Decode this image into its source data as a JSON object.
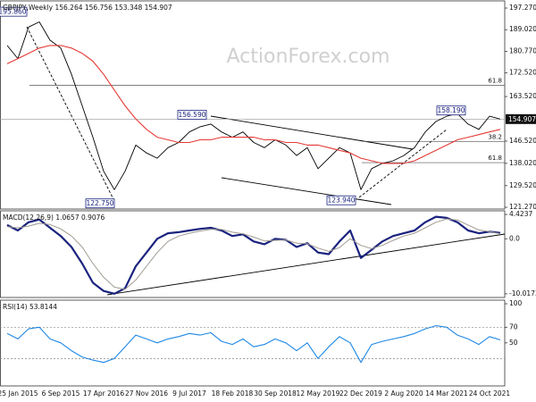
{
  "chart_data": [
    {
      "type": "line",
      "title": "GBPJPY,Weekly 156.264 156.756 153.348 154.907",
      "watermark": "ActionForex.com",
      "ylim": [
        120.6,
        200.0
      ],
      "yticks": [
        {
          "value": 197.27,
          "label": "197.270"
        },
        {
          "value": 189.02,
          "label": "189.020"
        },
        {
          "value": 180.77,
          "label": "180.770"
        },
        {
          "value": 172.52,
          "label": "172.520"
        },
        {
          "value": 163.52,
          "label": "163.520"
        },
        {
          "value": 146.52,
          "label": "146.520"
        },
        {
          "value": 138.02,
          "label": "138.020"
        },
        {
          "value": 129.52,
          "label": "129.520"
        },
        {
          "value": 121.27,
          "label": "121.270"
        }
      ],
      "grid": false,
      "series": [
        {
          "color": "#000000",
          "values": [
            183,
            178,
            190,
            192,
            185,
            182,
            172,
            160,
            148,
            135,
            128,
            135,
            145,
            142,
            140,
            144,
            146,
            150,
            152,
            153,
            150,
            148,
            150,
            146,
            144,
            147,
            145,
            141,
            144,
            136,
            140,
            144,
            142,
            128,
            136,
            138,
            139,
            141,
            144,
            150,
            154,
            156,
            157,
            153,
            151,
            156,
            154.907
          ]
        },
        {
          "color": "#e53935",
          "values": [
            176,
            178,
            180,
            182,
            183,
            183,
            182,
            180,
            177,
            172,
            166,
            160,
            155,
            151,
            148,
            147,
            146,
            146,
            147,
            147,
            148,
            148,
            148,
            148,
            147,
            147,
            146,
            146,
            145,
            145,
            144,
            143,
            142,
            140,
            139,
            138,
            138,
            138,
            139,
            141,
            143,
            145,
            147,
            148,
            149,
            150,
            151
          ]
        }
      ],
      "annotations": [
        {
          "value": 195.86,
          "label": "195.860"
        },
        {
          "value": 122.75,
          "label": "122.750"
        },
        {
          "value": 156.59,
          "label": "156.590"
        },
        {
          "value": 123.94,
          "label": "123.940"
        },
        {
          "value": 158.19,
          "label": "158.190"
        }
      ],
      "levels": [
        {
          "value": 167.8,
          "label": "61.8"
        },
        {
          "value": 146.4,
          "label": "38.2"
        },
        {
          "value": 138.3,
          "label": "61.8"
        }
      ],
      "last": {
        "value": 154.907,
        "label": "154.907"
      }
    },
    {
      "type": "line",
      "title": "MACD(12,26,9) 1.0657 0.9076",
      "ylim": [
        -10.68,
        5.08
      ],
      "yticks": [
        4.4237,
        {
          "value": 0,
          "label": "0.0"
        },
        -10.0172
      ],
      "grid": false,
      "series": [
        {
          "color": "#1a237e",
          "values": [
            2.5,
            1.5,
            3,
            3.5,
            2,
            0.5,
            -1.5,
            -4.5,
            -8,
            -9.5,
            -10,
            -9,
            -5,
            -2.5,
            0,
            1,
            1.2,
            1.5,
            1.8,
            2,
            1.5,
            0.5,
            0.8,
            -0.5,
            -1,
            0,
            -0.2,
            -1.5,
            -0.8,
            -2.5,
            -2.8,
            -0.5,
            1.5,
            -3.5,
            -2,
            -0.5,
            0.5,
            1,
            1.5,
            3,
            4,
            3.8,
            3,
            1.5,
            1,
            1.3,
            1.0657
          ]
        },
        {
          "color": "#a09a90",
          "values": [
            2.2,
            2,
            2.3,
            2.8,
            2.6,
            1.8,
            0.5,
            -1.5,
            -4.5,
            -7,
            -8.8,
            -9.2,
            -7.5,
            -5,
            -2.5,
            -0.5,
            0.5,
            1,
            1.4,
            1.7,
            1.7,
            1.2,
            0.9,
            0.3,
            -0.4,
            -0.3,
            -0.2,
            -0.8,
            -0.9,
            -1.7,
            -2.3,
            -1.6,
            0,
            -1.2,
            -1.8,
            -1.2,
            -0.3,
            0.5,
            1,
            2,
            3,
            3.6,
            3.4,
            2.5,
            1.6,
            1.3,
            0.9076
          ]
        }
      ]
    },
    {
      "type": "line",
      "title": "RSI(14) 53.8144",
      "ylim": [
        -5,
        104.6
      ],
      "yticks": [
        100,
        70,
        50
      ],
      "grid": false,
      "levels": [
        70,
        30
      ],
      "categories": [
        null,
        "25 Jan 2015",
        null,
        null,
        null,
        "6 Sep 2015",
        null,
        null,
        null,
        "17 Apr 2016",
        null,
        null,
        null,
        "27 Nov 2016",
        null,
        null,
        null,
        "9 Jul 2017",
        null,
        null,
        null,
        "18 Feb 2018",
        null,
        null,
        null,
        "30 Sep 2018",
        null,
        null,
        null,
        "12 May 2019",
        null,
        null,
        null,
        "22 Dec 2019",
        null,
        null,
        null,
        "2 Aug 2020",
        null,
        null,
        null,
        "14 Mar 2021",
        null,
        null,
        null,
        "24 Oct 2021",
        null
      ],
      "series": [
        {
          "color": "#1e88e5",
          "values": [
            62,
            55,
            68,
            70,
            55,
            50,
            40,
            32,
            28,
            25,
            30,
            45,
            60,
            55,
            50,
            55,
            58,
            62,
            60,
            63,
            52,
            48,
            55,
            45,
            48,
            55,
            50,
            40,
            50,
            30,
            45,
            58,
            50,
            25,
            48,
            52,
            55,
            58,
            62,
            68,
            72,
            70,
            60,
            55,
            48,
            58,
            53.8144
          ]
        }
      ]
    }
  ]
}
